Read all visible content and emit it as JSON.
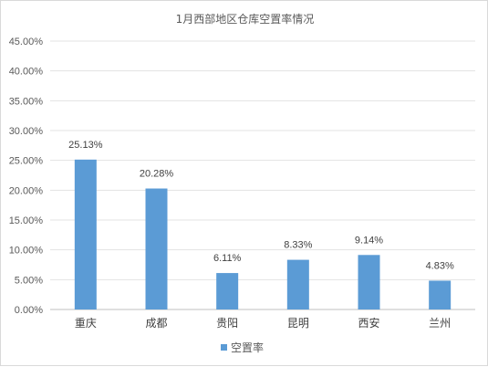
{
  "chart_data": {
    "type": "bar",
    "title": "1月西部地区仓库空置率情况",
    "categories": [
      "重庆",
      "成都",
      "贵阳",
      "昆明",
      "西安",
      "兰州"
    ],
    "series": [
      {
        "name": "空置率",
        "values": [
          25.13,
          20.28,
          6.11,
          8.33,
          9.14,
          4.83
        ],
        "data_labels": [
          "25.13%",
          "20.28%",
          "6.11%",
          "8.33%",
          "9.14%",
          "4.83%"
        ],
        "color": "#5b9bd5"
      }
    ],
    "ylim": [
      0,
      45
    ],
    "yticks": [
      "0.00%",
      "5.00%",
      "10.00%",
      "15.00%",
      "20.00%",
      "25.00%",
      "30.00%",
      "35.00%",
      "40.00%",
      "45.00%"
    ],
    "grid": true,
    "legend": "bottom"
  }
}
